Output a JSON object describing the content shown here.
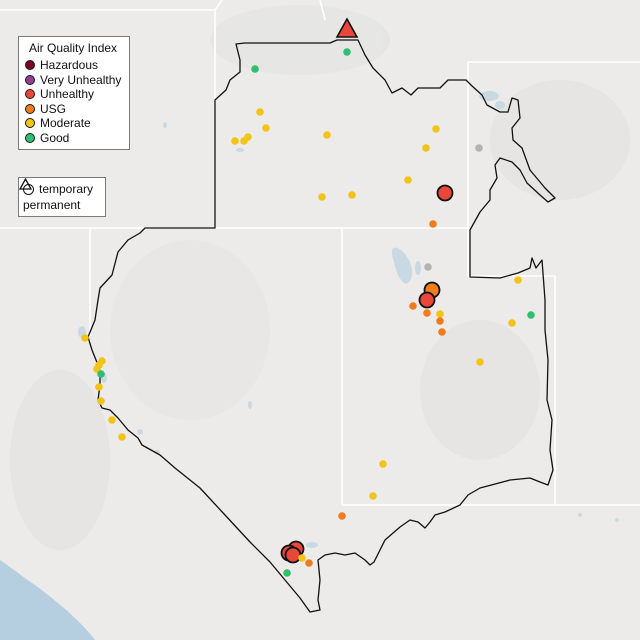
{
  "legend": {
    "title": "Air Quality Index",
    "categories": [
      {
        "label": "Hazardous",
        "color": "#7e0023"
      },
      {
        "label": "Very Unhealthy",
        "color": "#8f3f97"
      },
      {
        "label": "Unhealthy",
        "color": "#e8473a"
      },
      {
        "label": "USG",
        "color": "#f07c1a"
      },
      {
        "label": "Moderate",
        "color": "#f2c418"
      },
      {
        "label": "Good",
        "color": "#2fbf6e"
      }
    ]
  },
  "monitor_types": {
    "temporary_label": "temporary",
    "permanent_label": "permanent"
  },
  "colors": {
    "background": "#ecebea",
    "state_lines": "#ffffff",
    "region_outline": "#111111",
    "lake": "#c9d9e4",
    "ocean": "#b6cfe0",
    "no_data": "#b3b3b3"
  }
}
